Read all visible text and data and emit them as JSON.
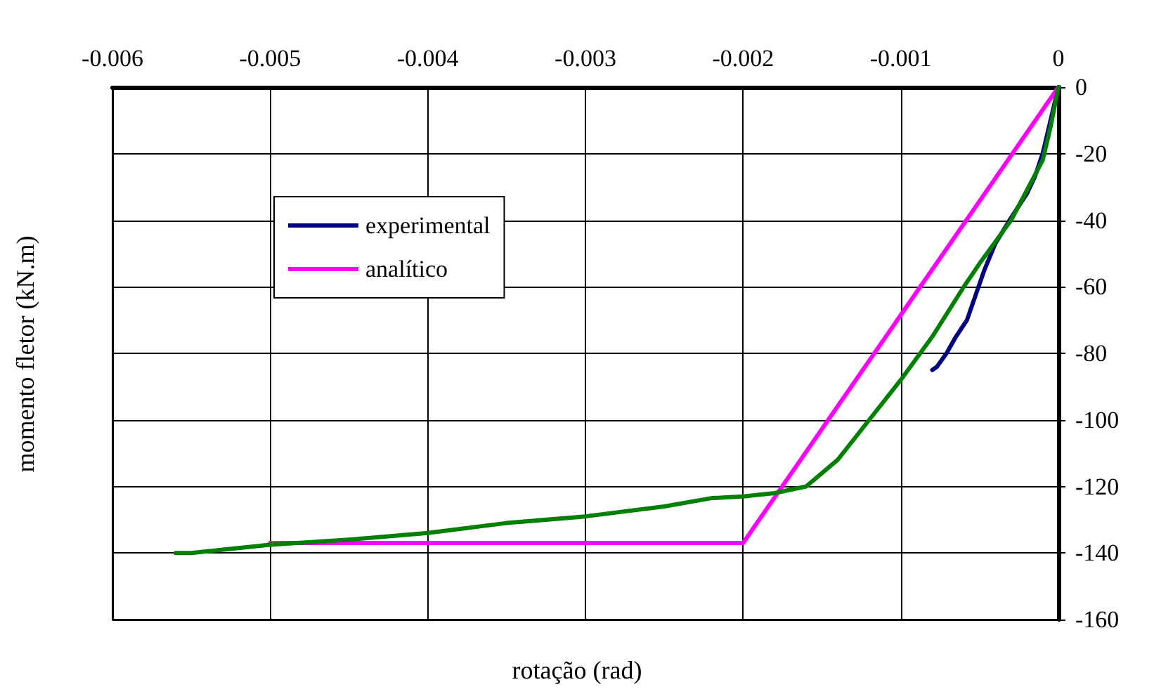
{
  "chart_data": {
    "type": "line",
    "xlabel": "rotação (rad)",
    "ylabel": "momento fletor (kN.m)",
    "xlim": [
      -0.006,
      0
    ],
    "xticks": [
      -0.006,
      -0.005,
      -0.004,
      -0.003,
      -0.002,
      -0.001,
      0
    ],
    "ylim": [
      -160,
      0
    ],
    "yticks": [
      0,
      -20,
      -40,
      -60,
      -80,
      -100,
      -120,
      -140,
      -160
    ],
    "grid": true,
    "legend": "top left",
    "marker": "none",
    "line_style": "solid",
    "series": [
      {
        "name": "experimental",
        "color": "#000080",
        "x": [
          0,
          -5e-05,
          -0.0001,
          -0.00015,
          -0.0002,
          -0.00031,
          -0.0004,
          -0.00047,
          -0.00058,
          -0.00065,
          -0.00071,
          -0.00077,
          -0.0008
        ],
        "values": [
          0,
          -10,
          -20,
          -27,
          -32,
          -40,
          -47,
          -55,
          -70,
          -75,
          -80,
          -84,
          -85
        ]
      },
      {
        "name": "analítico",
        "color": "#ff00ff",
        "x": [
          0,
          -0.002,
          -0.005
        ],
        "values": [
          0,
          -137,
          -137
        ]
      },
      {
        "color": "#008000",
        "x": [
          0,
          -5e-05,
          -0.0001,
          -0.0002,
          -0.0003,
          -0.0005,
          -0.0006,
          -0.0008,
          -0.001,
          -0.0012,
          -0.0014,
          -0.0016,
          -0.0018,
          -0.002,
          -0.0022,
          -0.0025,
          -0.003,
          -0.0035,
          -0.004,
          -0.0045,
          -0.005,
          -0.0055,
          -0.0056
        ],
        "values": [
          0,
          -12,
          -22,
          -31,
          -40,
          -53,
          -60,
          -75,
          -88,
          -100,
          -112,
          -120,
          -122,
          -123,
          -123.5,
          -126,
          -129,
          -131,
          -134,
          -136,
          -137.5,
          -140,
          -140
        ]
      }
    ]
  }
}
